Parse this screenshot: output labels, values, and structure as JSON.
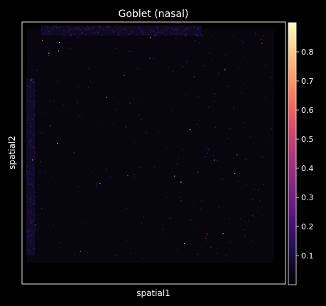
{
  "chart_data": {
    "type": "scatter",
    "title": "Goblet (nasal)",
    "xlabel": "spatial1",
    "ylabel": "spatial2",
    "grid": false,
    "colormap": "magma",
    "colorbar": {
      "range": [
        0.0,
        0.9
      ],
      "ticks": [
        0.1,
        0.2,
        0.3,
        0.4,
        0.5,
        0.6,
        0.7,
        0.8
      ],
      "tick_labels": [
        "0.1",
        "0.2",
        "0.3",
        "0.4",
        "0.5",
        "0.6",
        "0.7",
        "0.8"
      ]
    },
    "background_color": "#000000",
    "foreground_color": "#ffffff",
    "magma_stops": [
      "#000004",
      "#1c1044",
      "#4f127b",
      "#812581",
      "#b5367a",
      "#e55064",
      "#fb8761",
      "#fec287",
      "#fcfdbf"
    ]
  }
}
